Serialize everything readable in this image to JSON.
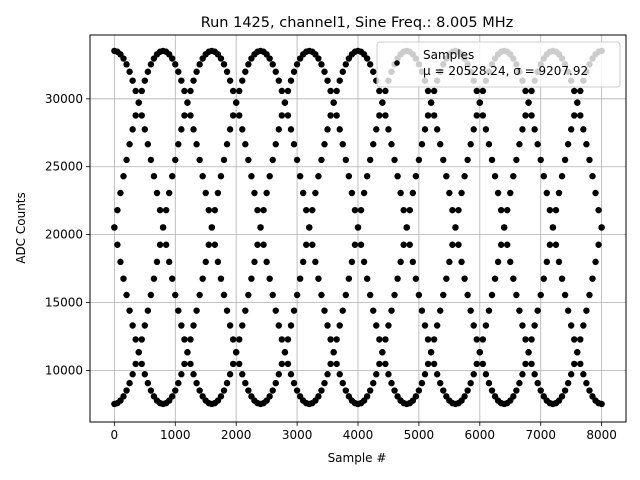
{
  "chart_data": {
    "type": "scatter",
    "title": "Run 1425, channel1, Sine Freq.: 8.005 MHz",
    "xlabel": "Sample #",
    "ylabel": "ADC Counts",
    "xlim": [
      -400,
      8400
    ],
    "ylim": [
      6200,
      34700
    ],
    "xticks": [
      0,
      1000,
      2000,
      3000,
      4000,
      5000,
      6000,
      7000,
      8000
    ],
    "yticks": [
      10000,
      15000,
      20000,
      25000,
      30000
    ],
    "grid": true,
    "legend_position": "top-right",
    "marker_color": "#000000",
    "series": [
      {
        "name": "Samples",
        "label_stats": "μ = 20528.24, σ = 9207.92",
        "model": {
          "offset": 20528,
          "amplitude": 13000,
          "period_samples": 3200,
          "sample_step": 50,
          "x_range": [
            0,
            8000
          ],
          "phases_deg": [
            90,
            180,
            270,
            0
          ]
        }
      }
    ]
  }
}
